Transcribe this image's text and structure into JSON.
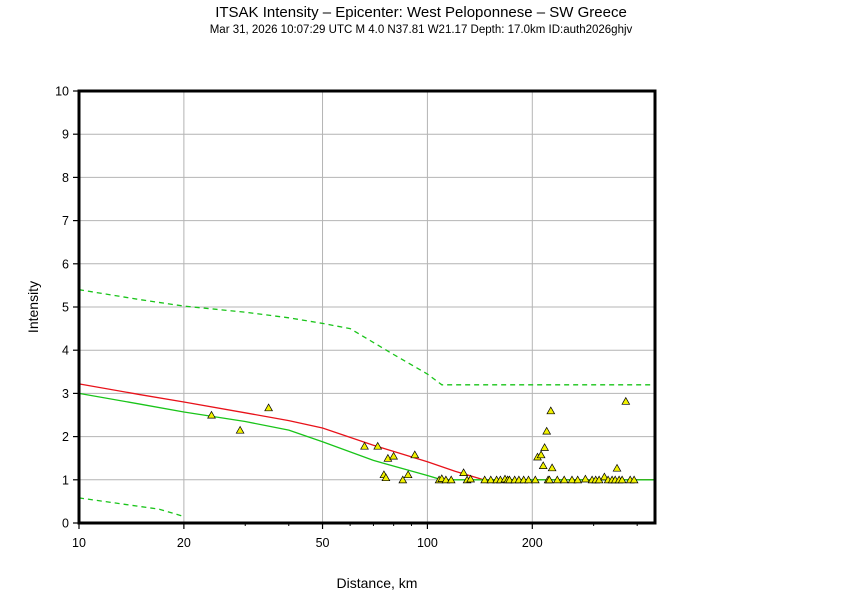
{
  "chart_data": {
    "type": "scatter",
    "title": "ITSAK Intensity –  Epicenter: West Peloponnese – SW Greece",
    "subtitle": "Mar 31, 2026 10:07:29 UTC   M 4.0   N37.81 W21.17   Depth: 17.0km   ID:auth2026ghjv",
    "xlabel": "Distance, km",
    "ylabel": "Intensity",
    "xscale": "log",
    "xlim": [
      10,
      450
    ],
    "ylim": [
      0,
      10
    ],
    "x_ticks": [
      10,
      20,
      50,
      100,
      200
    ],
    "y_ticks": [
      0,
      1,
      2,
      3,
      4,
      5,
      6,
      7,
      8,
      9,
      10
    ],
    "grid": true,
    "colors": {
      "red_line": "#e8121a",
      "green_line": "#19c419",
      "marker_fill": "#f2f200",
      "grid": "#b4b4b4"
    },
    "series": [
      {
        "style": "red-solid",
        "x": [
          10,
          15,
          20,
          30,
          40,
          50,
          70,
          100,
          120,
          145
        ],
        "y": [
          3.22,
          2.97,
          2.8,
          2.55,
          2.37,
          2.2,
          1.8,
          1.42,
          1.2,
          1.0
        ]
      },
      {
        "style": "red-solid-flat",
        "x": [
          145,
          450
        ],
        "y": [
          1.0,
          1.0
        ]
      },
      {
        "style": "green-solid",
        "x": [
          10,
          15,
          20,
          30,
          40,
          50,
          70,
          100,
          110,
          450
        ],
        "y": [
          3.0,
          2.75,
          2.57,
          2.35,
          2.15,
          1.88,
          1.45,
          1.1,
          1.0,
          1.0
        ]
      },
      {
        "style": "green-dashed-upper",
        "x": [
          10,
          15,
          20,
          30,
          40,
          50,
          60,
          80,
          100,
          110,
          450
        ],
        "y": [
          5.4,
          5.17,
          5.02,
          4.88,
          4.75,
          4.62,
          4.5,
          3.9,
          3.45,
          3.2,
          3.2
        ]
      },
      {
        "style": "green-dashed-lower",
        "x": [
          10,
          17,
          20
        ],
        "y": [
          0.58,
          0.32,
          0.15
        ]
      }
    ],
    "points": {
      "x": [
        24,
        29,
        35,
        66,
        72,
        75,
        76,
        77,
        80,
        85,
        88,
        92,
        108,
        110,
        113,
        117,
        127,
        130,
        133,
        146,
        152,
        158,
        162,
        167,
        170,
        172,
        178,
        183,
        189,
        195,
        204,
        207,
        212,
        215,
        217,
        220,
        222,
        224,
        226,
        228,
        236,
        247,
        260,
        270,
        284,
        297,
        304,
        311,
        322,
        330,
        339,
        346,
        350,
        355,
        362,
        371,
        382,
        392
      ],
      "y": [
        2.5,
        2.15,
        2.67,
        1.78,
        1.78,
        1.12,
        1.05,
        1.5,
        1.55,
        1.0,
        1.12,
        1.58,
        1.0,
        1.03,
        1.0,
        1.0,
        1.17,
        1.0,
        1.02,
        1.0,
        1.0,
        1.0,
        1.0,
        1.02,
        1.0,
        1.0,
        1.0,
        1.0,
        1.0,
        1.0,
        1.0,
        1.53,
        1.58,
        1.33,
        1.75,
        2.13,
        1.0,
        1.0,
        2.6,
        1.28,
        1.0,
        1.0,
        1.0,
        1.0,
        1.02,
        1.0,
        1.0,
        1.0,
        1.07,
        1.0,
        1.0,
        1.0,
        1.27,
        1.0,
        1.0,
        2.82,
        1.0,
        1.0
      ]
    }
  }
}
